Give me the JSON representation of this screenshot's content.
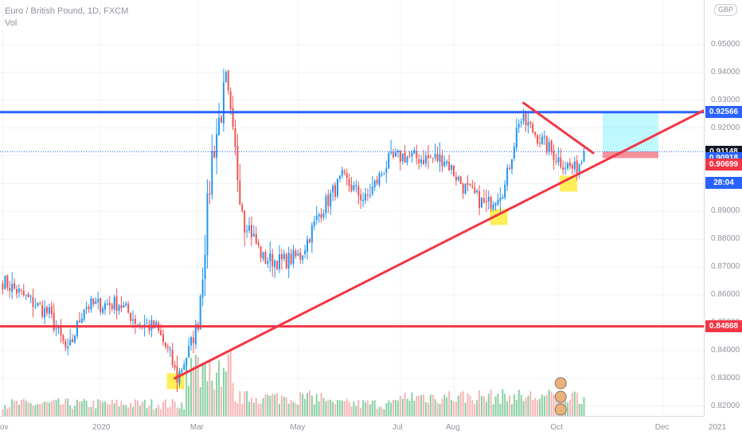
{
  "legend": {
    "symbol_line": "Euro / British Pound, 1D, FXCM",
    "volume_label": "Vol"
  },
  "currency_badge": "GBP",
  "price_axis": {
    "ticks": [
      "0.95000",
      "0.94000",
      "0.93000",
      "0.92000",
      "0.91000",
      "0.90000",
      "0.89000",
      "0.88000",
      "0.87000",
      "0.86000",
      "0.85000",
      "0.84000",
      "0.83000",
      "0.82000"
    ],
    "tags": [
      {
        "label": "0.92568",
        "value": 0.92568,
        "color": "#00e5ff",
        "text_color": "#131722"
      },
      {
        "label": "0.92566",
        "value": 0.92566,
        "color": "#2962ff",
        "text_color": "#ffffff"
      },
      {
        "label": "0.91148",
        "value": 0.91148,
        "color": "#131722",
        "text_color": "#ffffff"
      },
      {
        "label": "0.90918",
        "value": 0.90918,
        "color": "#2962ff",
        "text_color": "#ffffff"
      },
      {
        "label": "28:04",
        "value": 0.9002,
        "color": "#2962ff",
        "text_color": "#ffffff"
      },
      {
        "label": "0.90699",
        "value": 0.90699,
        "color": "#f23645",
        "text_color": "#ffffff"
      },
      {
        "label": "0.84868",
        "value": 0.84868,
        "color": "#f23645",
        "text_color": "#ffffff"
      }
    ]
  },
  "time_axis": {
    "labels": [
      {
        "text": "ov",
        "index": 0
      },
      {
        "text": "2020",
        "index": 42
      },
      {
        "text": "Mar",
        "index": 84
      },
      {
        "text": "May",
        "index": 127
      },
      {
        "text": "Jul",
        "index": 171
      },
      {
        "text": "Aug",
        "index": 194
      },
      {
        "text": "Oct",
        "index": 239
      },
      {
        "text": "Dec",
        "index": 284
      },
      {
        "text": "2021",
        "index": 307
      }
    ]
  },
  "chart_data": {
    "type": "candlestick",
    "title": "Euro / British Pound, 1D, FXCM",
    "ylim": [
      0.8165,
      0.966
    ],
    "up_color": "#2196f3",
    "down_color": "#ef5350",
    "volume_up_color": "#76c893",
    "volume_down_color": "#f7a8a8",
    "control_points": [
      {
        "i": 0,
        "c": 0.865
      },
      {
        "i": 10,
        "c": 0.859
      },
      {
        "i": 20,
        "c": 0.853
      },
      {
        "i": 28,
        "c": 0.839
      },
      {
        "i": 35,
        "c": 0.856
      },
      {
        "i": 50,
        "c": 0.857
      },
      {
        "i": 58,
        "c": 0.85
      },
      {
        "i": 66,
        "c": 0.848
      },
      {
        "i": 72,
        "c": 0.838
      },
      {
        "i": 75,
        "c": 0.83
      },
      {
        "i": 80,
        "c": 0.84
      },
      {
        "i": 84,
        "c": 0.85
      },
      {
        "i": 90,
        "c": 0.91
      },
      {
        "i": 96,
        "c": 0.935
      },
      {
        "i": 99,
        "c": 0.915
      },
      {
        "i": 104,
        "c": 0.888
      },
      {
        "i": 112,
        "c": 0.873
      },
      {
        "i": 120,
        "c": 0.872
      },
      {
        "i": 128,
        "c": 0.874
      },
      {
        "i": 136,
        "c": 0.889
      },
      {
        "i": 146,
        "c": 0.902
      },
      {
        "i": 156,
        "c": 0.894
      },
      {
        "i": 166,
        "c": 0.908
      },
      {
        "i": 172,
        "c": 0.91
      },
      {
        "i": 180,
        "c": 0.909
      },
      {
        "i": 190,
        "c": 0.909
      },
      {
        "i": 198,
        "c": 0.899
      },
      {
        "i": 208,
        "c": 0.892
      },
      {
        "i": 216,
        "c": 0.899
      },
      {
        "i": 222,
        "c": 0.923
      },
      {
        "i": 226,
        "c": 0.921
      },
      {
        "i": 232,
        "c": 0.915
      },
      {
        "i": 240,
        "c": 0.908
      },
      {
        "i": 246,
        "c": 0.905
      },
      {
        "i": 250,
        "c": 0.91
      }
    ],
    "levels": [
      {
        "value": 0.92568,
        "color": "#2962ff"
      },
      {
        "value": 0.84868,
        "color": "#f23645"
      }
    ],
    "trendlines": [
      {
        "from": [
          74,
          0.83
        ],
        "to": [
          308,
          0.929
        ],
        "color": "#f23645"
      },
      {
        "from": [
          224,
          0.929
        ],
        "to": [
          254,
          0.911
        ],
        "color": "#f23645"
      }
    ],
    "highlights": [
      {
        "i": 74,
        "value": 0.829
      },
      {
        "i": 213,
        "value": 0.888
      },
      {
        "i": 243,
        "value": 0.9
      }
    ],
    "position": {
      "from": 258,
      "to": 282,
      "entry": 0.91148,
      "target": 0.92568,
      "stop": 0.90918
    },
    "last_close": 0.91148
  }
}
